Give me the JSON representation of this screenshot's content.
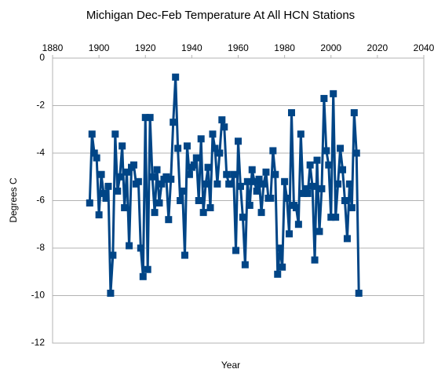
{
  "chart_data": {
    "type": "line",
    "title": "Michigan Dec-Feb Temperature At All HCN Stations",
    "x_label": "Year",
    "y_label": "Degrees C",
    "xlim": [
      1880,
      2040
    ],
    "xticks": [
      1880,
      1900,
      1920,
      1940,
      1960,
      1980,
      2000,
      2020,
      2040
    ],
    "ylim": [
      -12,
      0
    ],
    "yticks": [
      -12,
      -10,
      -8,
      -6,
      -4,
      -2,
      0
    ],
    "grid": true,
    "series": [
      {
        "name": "Temperature",
        "color": "#004586",
        "x": [
          1896,
          1897,
          1898,
          1899,
          1900,
          1901,
          1902,
          1903,
          1904,
          1905,
          1906,
          1907,
          1908,
          1909,
          1910,
          1911,
          1912,
          1913,
          1914,
          1915,
          1916,
          1917,
          1918,
          1919,
          1920,
          1921,
          1922,
          1923,
          1924,
          1925,
          1926,
          1927,
          1928,
          1929,
          1930,
          1931,
          1932,
          1933,
          1934,
          1935,
          1936,
          1937,
          1938,
          1939,
          1940,
          1941,
          1942,
          1943,
          1944,
          1945,
          1946,
          1947,
          1948,
          1949,
          1950,
          1951,
          1952,
          1953,
          1954,
          1955,
          1956,
          1957,
          1958,
          1959,
          1960,
          1961,
          1962,
          1963,
          1964,
          1965,
          1966,
          1967,
          1968,
          1969,
          1970,
          1971,
          1972,
          1973,
          1974,
          1975,
          1976,
          1977,
          1978,
          1979,
          1980,
          1981,
          1982,
          1983,
          1984,
          1985,
          1986,
          1987,
          1988,
          1989,
          1990,
          1991,
          1992,
          1993,
          1994,
          1995,
          1996,
          1997,
          1998,
          1999,
          2000,
          2001,
          2002,
          2003,
          2004,
          2005,
          2006,
          2007,
          2008,
          2009,
          2010,
          2011,
          2012
        ],
        "values": [
          -6.1,
          -3.2,
          -4.0,
          -4.2,
          -6.6,
          -4.9,
          -5.7,
          -5.9,
          -5.4,
          -9.9,
          -8.3,
          -3.2,
          -5.6,
          -5.0,
          -3.7,
          -6.3,
          -4.8,
          -7.9,
          -4.6,
          -4.5,
          -5.3,
          -5.2,
          -8.0,
          -9.2,
          -2.5,
          -8.9,
          -2.5,
          -5.0,
          -6.5,
          -4.7,
          -6.1,
          -5.3,
          -5.1,
          -5.0,
          -6.8,
          -5.1,
          -2.7,
          -0.8,
          -3.8,
          -6.0,
          -5.6,
          -8.3,
          -3.7,
          -4.9,
          -4.6,
          -4.5,
          -4.2,
          -6.0,
          -3.4,
          -6.5,
          -5.3,
          -4.6,
          -6.3,
          -3.2,
          -3.8,
          -5.3,
          -4.0,
          -2.6,
          -2.9,
          -4.9,
          -5.3,
          -5.3,
          -4.9,
          -8.1,
          -3.5,
          -5.4,
          -6.7,
          -8.7,
          -5.2,
          -6.2,
          -4.7,
          -5.2,
          -5.6,
          -5.1,
          -6.5,
          -5.3,
          -4.8,
          -5.9,
          -5.9,
          -3.9,
          -4.9,
          -9.1,
          -8.0,
          -8.8,
          -5.2,
          -5.9,
          -7.4,
          -2.3,
          -6.2,
          -6.3,
          -7.0,
          -3.2,
          -5.7,
          -5.5,
          -5.7,
          -4.5,
          -5.4,
          -8.5,
          -4.3,
          -7.3,
          -5.5,
          -1.7,
          -3.9,
          -4.5,
          -6.7,
          -1.5,
          -6.7,
          -5.3,
          -3.8,
          -4.7,
          -6.0,
          -7.6,
          -5.3,
          -6.3,
          -2.3,
          -4.0,
          -9.9
        ]
      }
    ]
  }
}
